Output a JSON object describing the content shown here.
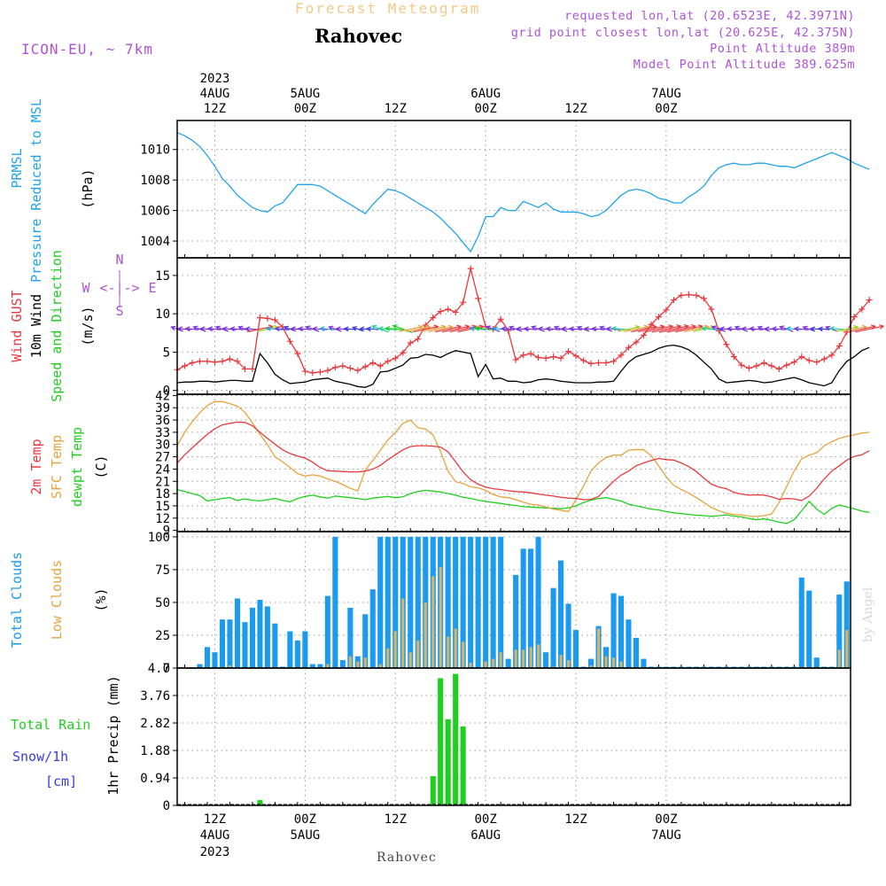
{
  "header": {
    "forecast_label": "Forecast Meteogram",
    "location": "Rahovec",
    "model": "ICON-EU, ~ 7km",
    "requested": "requested lon,lat (20.6523E, 42.3971N)",
    "grid_point": "grid point closest lon,lat (20.625E, 42.375N)",
    "point_alt": "Point Altitude 389m",
    "model_alt": "Model Point Altitude 389.625m"
  },
  "footer": {
    "location": "Rahovec",
    "signature": "by Angel"
  },
  "time_axis": {
    "top_labels": [
      {
        "h": 12,
        "l1": "4AUG",
        "l2": "12Z",
        "l0": "2023"
      },
      {
        "h": 24,
        "l1": "5AUG",
        "l2": "00Z"
      },
      {
        "h": 36,
        "l1": "",
        "l2": "12Z"
      },
      {
        "h": 48,
        "l1": "6AUG",
        "l2": "00Z"
      },
      {
        "h": 60,
        "l1": "",
        "l2": "12Z"
      },
      {
        "h": 72,
        "l1": "7AUG",
        "l2": "00Z"
      }
    ],
    "bottom_labels": [
      {
        "h": 12,
        "l1": "12Z",
        "l2": "4AUG",
        "l3": "2023"
      },
      {
        "h": 24,
        "l1": "00Z",
        "l2": "5AUG"
      },
      {
        "h": 36,
        "l1": "12Z"
      },
      {
        "h": 48,
        "l1": "00Z",
        "l2": "6AUG"
      },
      {
        "h": 60,
        "l1": "12Z"
      },
      {
        "h": 72,
        "l1": "00Z",
        "l2": "7AUG"
      }
    ]
  },
  "panel_labels": {
    "pressure": [
      "PRMSL",
      "Pressure Reduced to MSL",
      "(hPa)"
    ],
    "wind": [
      "Wind GUST",
      "10m Wind",
      "Speed and Direction",
      "(m/s)"
    ],
    "compass": [
      "N",
      "S",
      "W",
      "E",
      "<-|->"
    ],
    "temp": [
      "2m Temp",
      "SFC Temp",
      "dewpt Temp",
      "(C)"
    ],
    "clouds": [
      "Total Clouds",
      "Low Clouds",
      "(%)"
    ],
    "precip": [
      "Total  Rain",
      "Snow/1h",
      "[cm]",
      "1hr Precip (mm)"
    ]
  },
  "colors": {
    "pressure": "#1fa3ec",
    "gust": "#e8383d",
    "wind": "#000000",
    "t2m": "#e8383d",
    "sfc": "#e8a33d",
    "dew": "#1fcf1f",
    "total_cloud": "#1a9bef",
    "low_cloud": "#d6b468",
    "rain": "#1fcf1f",
    "purple": "#b052d9"
  },
  "chart_data": [
    {
      "type": "line",
      "panel": "pressure",
      "title": "PRMSL Pressure Reduced to MSL",
      "ylabel": "(hPa)",
      "ylim": [
        1002.9,
        1011.9
      ],
      "yticks": [
        1004,
        1006,
        1008,
        1010
      ],
      "x_hours_start": 7,
      "values": [
        1011.1,
        1010.9,
        1010.6,
        1010.2,
        1009.6,
        1008.9,
        1008.1,
        1007.6,
        1007.0,
        1006.6,
        1006.2,
        1006.0,
        1005.9,
        1006.3,
        1006.5,
        1007.1,
        1007.7,
        1007.7,
        1007.7,
        1007.6,
        1007.3,
        1007.0,
        1006.7,
        1006.4,
        1006.1,
        1005.8,
        1006.4,
        1006.9,
        1007.4,
        1007.3,
        1007.1,
        1006.8,
        1006.5,
        1006.2,
        1005.9,
        1005.5,
        1005.0,
        1004.5,
        1003.9,
        1003.3,
        1004.3,
        1005.6,
        1005.6,
        1006.2,
        1006.0,
        1006.0,
        1006.6,
        1006.4,
        1006.2,
        1006.5,
        1006.1,
        1005.9,
        1005.9,
        1005.9,
        1005.8,
        1005.6,
        1005.7,
        1006.0,
        1006.5,
        1007.0,
        1007.3,
        1007.4,
        1007.3,
        1007.1,
        1006.8,
        1006.7,
        1006.5,
        1006.5,
        1006.9,
        1007.2,
        1007.6,
        1008.3,
        1008.8,
        1009.0,
        1009.1,
        1009.0,
        1009.0,
        1009.1,
        1009.1,
        1009.0,
        1008.9,
        1008.9,
        1008.8,
        1009.0,
        1009.2,
        1009.4,
        1009.6,
        1009.8,
        1009.6,
        1009.4,
        1009.1,
        1008.9,
        1008.7
      ]
    },
    {
      "type": "line",
      "panel": "wind",
      "title": "Wind GUST / 10m Wind Speed and Direction",
      "ylabel": "(m/s)",
      "ylim": [
        -0.5,
        17.3
      ],
      "yticks": [
        0,
        5,
        10,
        15
      ],
      "x_hours_start": 7,
      "series": [
        {
          "name": "Wind GUST",
          "values": [
            2.7,
            3.2,
            3.6,
            3.8,
            3.8,
            3.7,
            3.8,
            4.1,
            3.8,
            2.8,
            2.8,
            9.5,
            9.4,
            9.2,
            8.3,
            6.4,
            4.8,
            2.5,
            2.3,
            2.4,
            2.6,
            3.0,
            3.2,
            2.9,
            2.6,
            3.1,
            3.6,
            3.2,
            3.8,
            4.2,
            4.9,
            6.2,
            6.7,
            8.5,
            9.5,
            10.3,
            10.6,
            10.2,
            11.5,
            15.9,
            12.0,
            8.3,
            8.0,
            9.3,
            7.8,
            4.0,
            4.6,
            4.8,
            4.3,
            4.2,
            4.4,
            4.2,
            5.1,
            4.5,
            3.9,
            3.5,
            3.6,
            3.6,
            3.8,
            4.6,
            5.6,
            6.3,
            7.2,
            8.6,
            9.6,
            10.5,
            11.8,
            12.4,
            12.5,
            12.4,
            12.0,
            10.6,
            7.8,
            6.0,
            4.4,
            3.3,
            2.9,
            3.2,
            3.6,
            3.2,
            2.8,
            3.3,
            3.7,
            4.4,
            3.9,
            3.7,
            4.1,
            4.6,
            5.8,
            7.6,
            9.6,
            10.6,
            11.8
          ]
        },
        {
          "name": "10m Wind",
          "values": [
            1.0,
            1.1,
            1.1,
            1.2,
            1.2,
            1.1,
            1.2,
            1.3,
            1.3,
            1.2,
            1.2,
            4.8,
            3.6,
            2.1,
            1.4,
            0.9,
            1.0,
            1.1,
            1.4,
            1.5,
            1.6,
            1.2,
            1.0,
            0.8,
            0.5,
            0.4,
            0.8,
            2.4,
            2.5,
            2.9,
            3.3,
            4.2,
            4.3,
            4.7,
            4.6,
            4.3,
            4.8,
            5.2,
            5.0,
            4.8,
            1.8,
            3.4,
            1.5,
            1.6,
            1.2,
            1.2,
            1.0,
            1.1,
            1.4,
            1.5,
            1.4,
            1.2,
            1.1,
            1.0,
            1.0,
            1.0,
            1.1,
            1.1,
            1.2,
            2.5,
            3.7,
            4.4,
            4.7,
            5.0,
            5.5,
            5.8,
            5.9,
            5.7,
            5.3,
            4.6,
            3.7,
            2.8,
            1.5,
            1.0,
            1.1,
            1.2,
            1.3,
            1.2,
            1.0,
            1.1,
            1.3,
            1.5,
            1.7,
            1.4,
            1.0,
            0.8,
            0.6,
            1.0,
            2.6,
            3.8,
            4.4,
            5.2,
            5.6
          ]
        }
      ]
    },
    {
      "type": "line",
      "panel": "temp",
      "title": "2m / SFC / dewpoint Temperature",
      "ylabel": "(C)",
      "ylim": [
        8.7,
        42.3
      ],
      "yticks": [
        9,
        12,
        15,
        18,
        21,
        24,
        27,
        30,
        33,
        36,
        39,
        42
      ],
      "x_hours_start": 7,
      "series": [
        {
          "name": "2m Temp",
          "values": [
            25.5,
            27.5,
            29.2,
            30.9,
            32.5,
            33.9,
            34.8,
            35.2,
            35.5,
            35.4,
            34.6,
            33.0,
            31.5,
            30.1,
            28.7,
            27.8,
            27.2,
            26.7,
            25.7,
            24.4,
            23.6,
            23.5,
            23.4,
            23.3,
            23.3,
            23.5,
            24.0,
            24.9,
            26.3,
            27.5,
            28.7,
            29.5,
            29.7,
            29.7,
            29.6,
            29.4,
            28.2,
            25.8,
            23.3,
            21.4,
            20.3,
            19.6,
            19.2,
            19.0,
            18.7,
            18.5,
            18.4,
            18.2,
            17.9,
            17.6,
            17.4,
            17.1,
            16.9,
            16.8,
            16.5,
            16.6,
            17.3,
            19.2,
            21.0,
            22.5,
            23.5,
            24.8,
            25.5,
            26.1,
            26.6,
            26.3,
            26.2,
            25.5,
            24.6,
            23.4,
            21.8,
            20.3,
            19.6,
            19.2,
            18.3,
            17.9,
            17.6,
            17.7,
            17.6,
            17.2,
            16.6,
            16.8,
            16.7,
            16.3,
            17.4,
            19.3,
            21.6,
            23.5,
            24.8,
            26.2,
            27.1,
            27.5,
            28.5
          ]
        },
        {
          "name": "SFC Temp",
          "values": [
            29.7,
            33.0,
            35.6,
            37.8,
            39.6,
            40.5,
            40.5,
            40.0,
            39.4,
            37.9,
            35.3,
            32.5,
            30.0,
            27.0,
            25.8,
            24.4,
            22.9,
            22.3,
            22.6,
            22.3,
            21.6,
            21.0,
            20.2,
            19.3,
            18.7,
            23.8,
            26.1,
            28.6,
            31.1,
            33.0,
            35.2,
            36.0,
            34.1,
            33.8,
            32.4,
            28.3,
            23.5,
            20.9,
            20.5,
            19.7,
            19.4,
            18.8,
            17.8,
            17.2,
            17.0,
            16.5,
            15.9,
            15.4,
            15.2,
            14.7,
            14.2,
            13.9,
            13.6,
            16.5,
            19.8,
            23.5,
            25.5,
            26.8,
            27.4,
            27.4,
            28.6,
            28.8,
            28.7,
            27.3,
            24.8,
            22.1,
            20.0,
            19.0,
            18.1,
            17.0,
            15.8,
            14.6,
            13.8,
            13.2,
            12.9,
            12.8,
            12.5,
            12.4,
            12.6,
            13.0,
            15.8,
            19.7,
            23.5,
            26.5,
            27.4,
            28.0,
            29.7,
            30.7,
            31.5,
            32.0,
            32.4,
            32.8,
            33.0
          ]
        },
        {
          "name": "dewpt Temp",
          "values": [
            19.0,
            18.5,
            18.0,
            17.5,
            16.2,
            16.5,
            16.8,
            17.0,
            16.3,
            16.7,
            16.4,
            16.2,
            16.5,
            16.8,
            16.3,
            16.0,
            16.8,
            17.3,
            17.6,
            17.2,
            16.9,
            17.4,
            17.2,
            17.0,
            16.8,
            16.5,
            16.9,
            17.1,
            17.3,
            17.0,
            17.2,
            18.0,
            18.5,
            18.8,
            18.6,
            18.4,
            18.0,
            17.6,
            17.1,
            16.8,
            16.4,
            16.1,
            15.8,
            15.6,
            15.3,
            15.1,
            14.8,
            14.7,
            14.6,
            14.5,
            14.4,
            14.3,
            14.5,
            15.0,
            15.8,
            16.4,
            16.8,
            17.0,
            16.6,
            16.2,
            15.4,
            15.0,
            14.6,
            14.2,
            14.0,
            13.6,
            13.3,
            13.1,
            12.9,
            12.7,
            12.6,
            12.4,
            12.6,
            12.8,
            12.5,
            12.3,
            11.9,
            11.6,
            11.8,
            11.5,
            11.0,
            10.7,
            11.6,
            13.8,
            16.1,
            14.2,
            12.9,
            14.4,
            15.2,
            14.7,
            14.3,
            13.7,
            13.4
          ]
        }
      ]
    },
    {
      "type": "bar",
      "panel": "clouds",
      "title": "Total / Low Clouds",
      "ylabel": "(%)",
      "ylim": [
        0,
        104
      ],
      "yticks": [
        0,
        25,
        50,
        75,
        100
      ],
      "x_hours_start": 10,
      "series": [
        {
          "name": "Total Clouds",
          "values": [
            3,
            16,
            12,
            37,
            37,
            53,
            35,
            46,
            52,
            47,
            34,
            1,
            28,
            21,
            28,
            3,
            3,
            55,
            100,
            6,
            46,
            9,
            41,
            60,
            100,
            100,
            100,
            100,
            100,
            100,
            100,
            100,
            100,
            100,
            100,
            100,
            100,
            100,
            100,
            100,
            100,
            7,
            71,
            91,
            91,
            100,
            12,
            61,
            82,
            49,
            29,
            1,
            7,
            32,
            16,
            57,
            55,
            37,
            23,
            7,
            1,
            1,
            1,
            1,
            1,
            1,
            1,
            1,
            1,
            1,
            1,
            1,
            1,
            1,
            1,
            1,
            1,
            1,
            1,
            1,
            69,
            59,
            8,
            1,
            1,
            56,
            66,
            57
          ]
        },
        {
          "name": "Low Clouds",
          "values": [
            0,
            0,
            0,
            0,
            2,
            0,
            0,
            0,
            0,
            0,
            0,
            0,
            0,
            0,
            0,
            0,
            0,
            3,
            0,
            0,
            9,
            5,
            8,
            0,
            3,
            15,
            28,
            53,
            12,
            21,
            50,
            70,
            77,
            24,
            30,
            20,
            4,
            0,
            5,
            7,
            12,
            0,
            14,
            14,
            16,
            18,
            0,
            1,
            10,
            6,
            0,
            0,
            2,
            30,
            9,
            8,
            5,
            0,
            0,
            0,
            0,
            0,
            0,
            0,
            0,
            0,
            0,
            0,
            0,
            0,
            0,
            0,
            0,
            0,
            0,
            0,
            0,
            0,
            0,
            0,
            0,
            0,
            0,
            0,
            0,
            14,
            29,
            34
          ]
        }
      ]
    },
    {
      "type": "bar",
      "panel": "precip",
      "title": "1hr Precip (mm)",
      "ylabel": "1hr Precip (mm)",
      "ylim": [
        0,
        4.7
      ],
      "yticks": [
        0,
        0.94,
        1.88,
        2.82,
        3.76,
        4.7
      ],
      "x_hours_start": 10,
      "values": [
        0,
        0,
        0,
        0,
        0,
        0,
        0,
        0,
        0.18,
        0,
        0,
        0,
        0,
        0,
        0,
        0,
        0,
        0,
        0,
        0,
        0,
        0,
        0,
        0,
        0,
        0,
        0,
        0,
        0,
        0,
        0,
        1.0,
        4.35,
        2.95,
        4.5,
        2.7,
        0,
        0,
        0,
        0,
        0,
        0,
        0,
        0,
        0,
        0,
        0,
        0,
        0,
        0,
        0,
        0,
        0,
        0,
        0,
        0,
        0,
        0,
        0,
        0,
        0,
        0,
        0,
        0,
        0,
        0,
        0,
        0,
        0,
        0,
        0,
        0,
        0,
        0,
        0,
        0,
        0,
        0,
        0,
        0,
        0,
        0,
        0,
        0,
        0,
        0,
        0,
        0
      ]
    }
  ]
}
